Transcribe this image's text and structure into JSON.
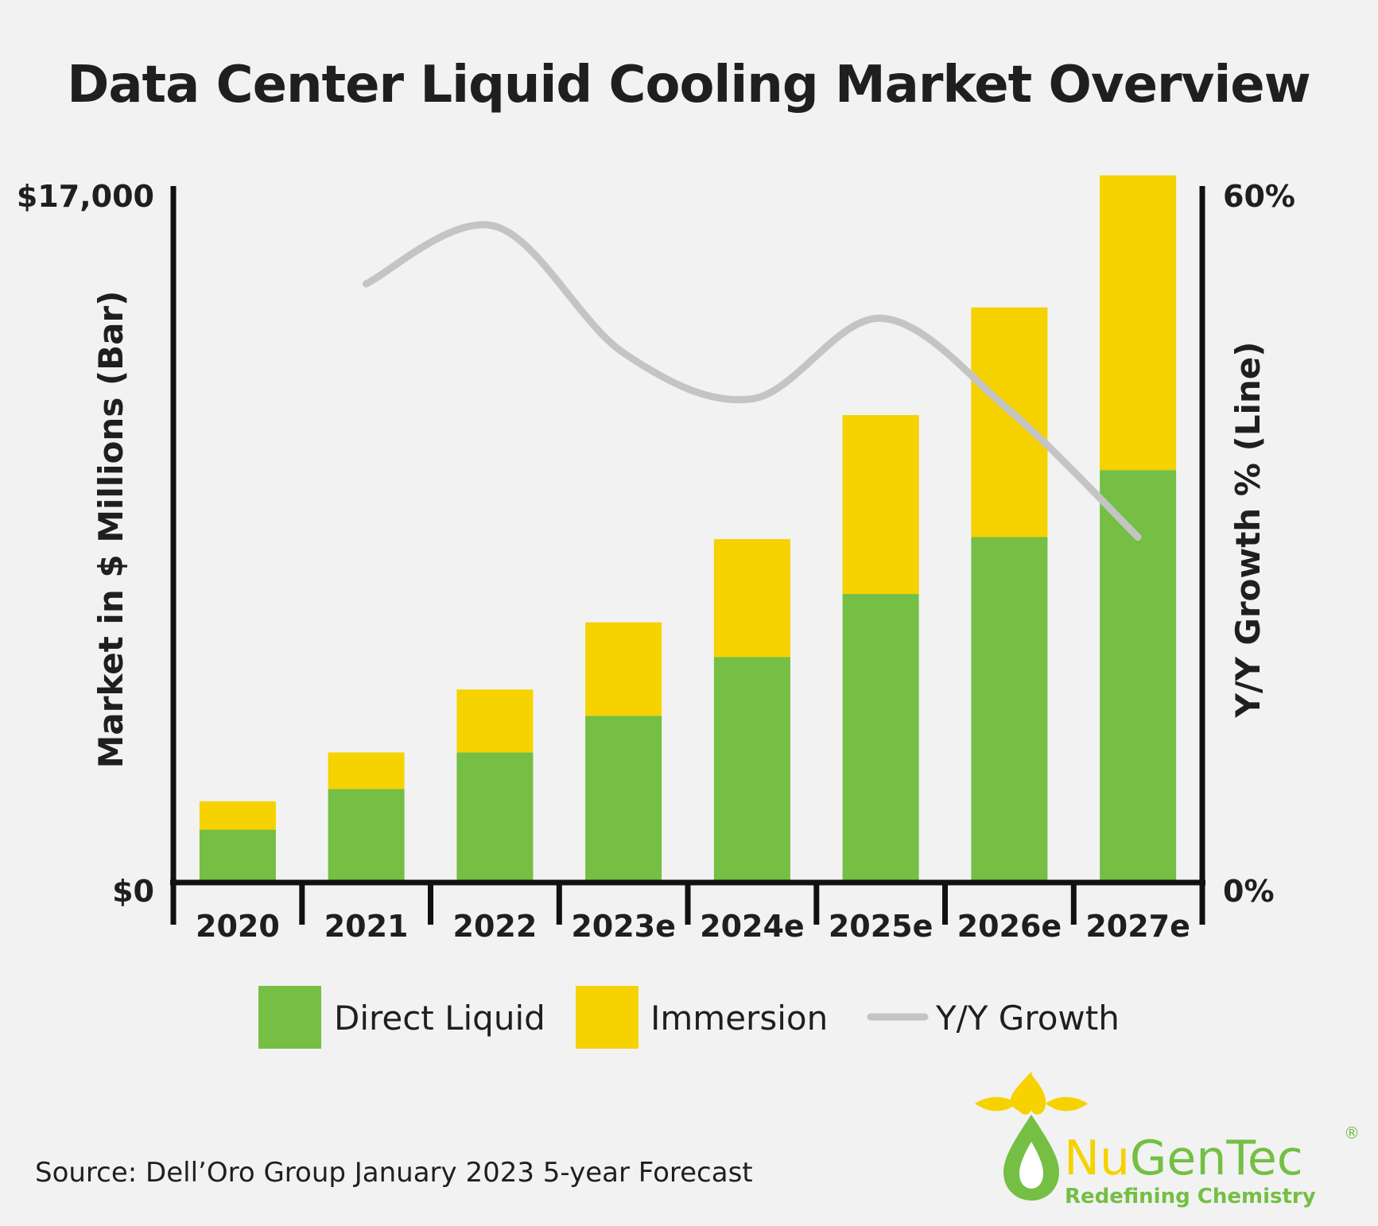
{
  "chart_data": {
    "type": "bar",
    "stacked": true,
    "title": "Data Center Liquid Cooling Market Overview",
    "categories": [
      "2020",
      "2021",
      "2022",
      "2023e",
      "2024e",
      "2025e",
      "2026e",
      "2027e"
    ],
    "series": [
      {
        "name": "Direct Liquid",
        "type": "bar",
        "axis": "left",
        "color": "#74bf44",
        "values": [
          1300,
          2300,
          3200,
          4100,
          5550,
          7100,
          8500,
          10150
        ]
      },
      {
        "name": "Immersion",
        "type": "bar",
        "axis": "left",
        "color": "#f5d200",
        "values": [
          700,
          900,
          1550,
          2300,
          2900,
          4400,
          5650,
          7250
        ]
      },
      {
        "name": "Y/Y Growth",
        "type": "line",
        "axis": "right",
        "color": "#c4c4c4",
        "x": [
          "2021",
          "2022",
          "2023e",
          "2024e",
          "2025e",
          "2026e",
          "2027e"
        ],
        "values": [
          52,
          57,
          46,
          42,
          49,
          41,
          30
        ]
      }
    ],
    "ylabel": "Market in $ Millions (Bar)",
    "y2label": "Y/Y Growth % (Line)",
    "ylim": [
      0,
      17000
    ],
    "y2lim": [
      0,
      60
    ],
    "ytick_labels": {
      "top": "$17,000",
      "bottom": "$0"
    },
    "y2tick_labels": {
      "top": "60%",
      "bottom": "0%"
    },
    "grid": false,
    "legend_position": "bottom"
  },
  "source": "Source: Dell’Oro Group January 2023 5-year Forecast",
  "logo": {
    "name_part1": "Nu",
    "name_part2": "GenTec",
    "registered": "®",
    "tagline": "Redefining Chemistry",
    "color_yellow": "#f5d200",
    "color_green": "#74bf44"
  }
}
